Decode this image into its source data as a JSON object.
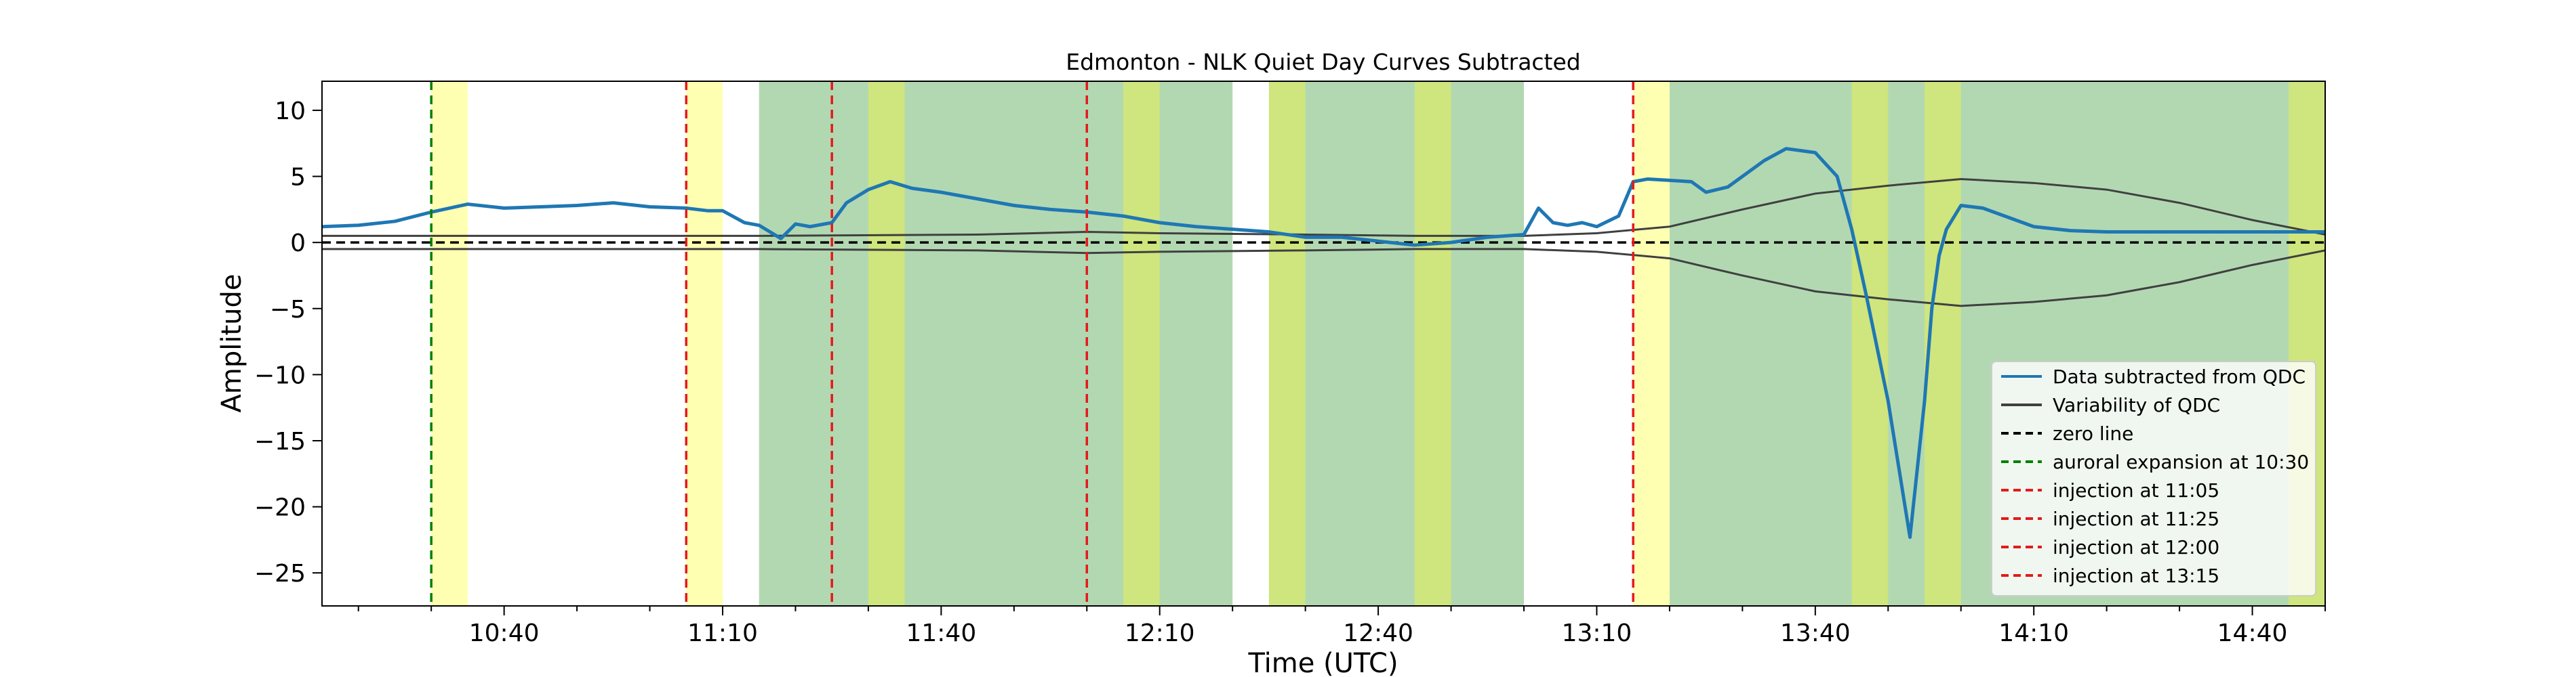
{
  "chart_data": {
    "type": "line",
    "title": "Edmonton - NLK Quiet Day Curves Subtracted",
    "xlabel": "Time (UTC)",
    "ylabel": "Amplitude",
    "xlim": [
      "10:15",
      "14:50"
    ],
    "ylim": [
      -27.5,
      12.2
    ],
    "x_ticks": [
      "10:40",
      "11:10",
      "11:40",
      "12:10",
      "12:40",
      "13:10",
      "13:40",
      "14:10",
      "14:40"
    ],
    "y_ticks": [
      10,
      5,
      0,
      -5,
      -10,
      -15,
      -20,
      -25
    ],
    "y_tick_labels": [
      "10",
      "5",
      "0",
      "−5",
      "−10",
      "−15",
      "−20",
      "−25"
    ],
    "grid": false,
    "legend_position": "lower-right",
    "colors": {
      "data": "#1f77b4",
      "variability": "#404040",
      "zero": "#000000",
      "auroral": "#008000",
      "injection": "#e41a1c",
      "yellow_band": "#ffffb2",
      "green_band": "#b2d8b2",
      "overlap_band": "#cfe57d"
    },
    "green_bands": [
      [
        "11:15",
        "12:20"
      ],
      [
        "12:25",
        "13:00"
      ],
      [
        "13:20",
        "14:50"
      ]
    ],
    "yellow_bands": [
      [
        "10:30",
        "10:35"
      ],
      [
        "11:05",
        "11:10"
      ],
      [
        "11:30",
        "11:35"
      ],
      [
        "12:05",
        "12:10"
      ],
      [
        "12:25",
        "12:30"
      ],
      [
        "12:45",
        "12:50"
      ],
      [
        "13:15",
        "13:20"
      ],
      [
        "13:45",
        "13:50"
      ],
      [
        "13:55",
        "14:00"
      ],
      [
        "14:45",
        "14:50"
      ]
    ],
    "vlines": [
      {
        "x": "10:30",
        "kind": "auroral"
      },
      {
        "x": "11:05",
        "kind": "injection"
      },
      {
        "x": "11:25",
        "kind": "injection"
      },
      {
        "x": "12:00",
        "kind": "injection"
      },
      {
        "x": "13:15",
        "kind": "injection"
      }
    ],
    "series": [
      {
        "name": "Data subtracted from QDC",
        "style": "solid",
        "x": [
          "10:15",
          "10:20",
          "10:25",
          "10:30",
          "10:35",
          "10:40",
          "10:45",
          "10:50",
          "10:55",
          "11:00",
          "11:05",
          "11:08",
          "11:10",
          "11:13",
          "11:15",
          "11:18",
          "11:20",
          "11:22",
          "11:25",
          "11:27",
          "11:30",
          "11:33",
          "11:36",
          "11:40",
          "11:45",
          "11:50",
          "11:55",
          "12:00",
          "12:05",
          "12:10",
          "12:15",
          "12:20",
          "12:25",
          "12:30",
          "12:35",
          "12:40",
          "12:45",
          "12:50",
          "12:55",
          "13:00",
          "13:02",
          "13:04",
          "13:06",
          "13:08",
          "13:10",
          "13:13",
          "13:15",
          "13:17",
          "13:20",
          "13:23",
          "13:25",
          "13:28",
          "13:30",
          "13:33",
          "13:36",
          "13:40",
          "13:43",
          "13:45",
          "13:47",
          "13:50",
          "13:53",
          "13:55",
          "13:56",
          "13:57",
          "13:58",
          "14:00",
          "14:03",
          "14:06",
          "14:10",
          "14:15",
          "14:20",
          "14:25",
          "14:30",
          "14:35",
          "14:40",
          "14:45",
          "14:50"
        ],
        "values": [
          1.2,
          1.3,
          1.6,
          2.3,
          2.9,
          2.6,
          2.7,
          2.8,
          3.0,
          2.7,
          2.6,
          2.4,
          2.4,
          1.5,
          1.3,
          0.3,
          1.4,
          1.2,
          1.5,
          3.0,
          4.0,
          4.6,
          4.1,
          3.8,
          3.3,
          2.8,
          2.5,
          2.3,
          2.0,
          1.5,
          1.2,
          1.0,
          0.8,
          0.4,
          0.4,
          0.1,
          -0.2,
          0.0,
          0.4,
          0.6,
          2.6,
          1.5,
          1.3,
          1.5,
          1.2,
          2.0,
          4.6,
          4.8,
          4.7,
          4.6,
          3.8,
          4.2,
          5.0,
          6.2,
          7.1,
          6.8,
          5.0,
          1.0,
          -4.0,
          -12.0,
          -22.3,
          -12.0,
          -5.0,
          -1.0,
          1.0,
          2.8,
          2.6,
          2.0,
          1.2,
          0.9,
          0.8,
          0.8,
          0.8,
          0.8,
          0.8,
          0.8,
          0.8
        ]
      },
      {
        "name": "Variability of QDC",
        "style": "solid",
        "x": [
          "10:15",
          "10:45",
          "11:15",
          "11:45",
          "12:00",
          "12:10",
          "12:30",
          "12:45",
          "13:00",
          "13:10",
          "13:20",
          "13:30",
          "13:40",
          "13:50",
          "14:00",
          "14:10",
          "14:20",
          "14:30",
          "14:40",
          "14:50"
        ],
        "upper": [
          0.5,
          0.5,
          0.5,
          0.6,
          0.8,
          0.7,
          0.6,
          0.5,
          0.5,
          0.7,
          1.2,
          2.5,
          3.7,
          4.3,
          4.8,
          4.5,
          4.0,
          3.0,
          1.7,
          0.6
        ],
        "lower": [
          -0.5,
          -0.5,
          -0.5,
          -0.6,
          -0.8,
          -0.7,
          -0.6,
          -0.5,
          -0.5,
          -0.7,
          -1.2,
          -2.5,
          -3.7,
          -4.3,
          -4.8,
          -4.5,
          -4.0,
          -3.0,
          -1.7,
          -0.6
        ]
      },
      {
        "name": "zero line",
        "style": "dashed",
        "value": 0
      }
    ],
    "legend": [
      {
        "label": "Data subtracted from QDC",
        "color": "#1f77b4",
        "style": "solid"
      },
      {
        "label": "Variability of QDC",
        "color": "#404040",
        "style": "solid"
      },
      {
        "label": "zero line",
        "color": "#000000",
        "style": "dashed"
      },
      {
        "label": "auroral expansion at 10:30",
        "color": "#008000",
        "style": "dashed"
      },
      {
        "label": "injection at 11:05",
        "color": "#e41a1c",
        "style": "dashed"
      },
      {
        "label": "injection at 11:25",
        "color": "#e41a1c",
        "style": "dashed"
      },
      {
        "label": "injection at 12:00",
        "color": "#e41a1c",
        "style": "dashed"
      },
      {
        "label": "injection at 13:15",
        "color": "#e41a1c",
        "style": "dashed"
      }
    ]
  }
}
